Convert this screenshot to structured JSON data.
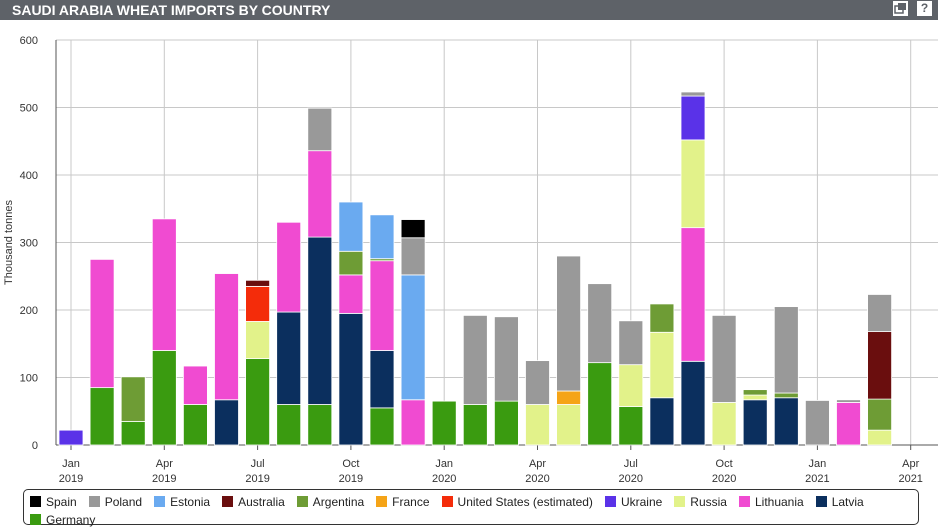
{
  "header": {
    "title": "SAUDI ARABIA WHEAT IMPORTS BY COUNTRY",
    "expand_icon": "window-restore-icon",
    "help_glyph": "?"
  },
  "chart_data": {
    "type": "bar",
    "stacked": true,
    "title": "SAUDI ARABIA WHEAT IMPORTS BY COUNTRY",
    "ylabel": "Thousand tonnes",
    "xlabel": "",
    "ylim": [
      0,
      600
    ],
    "yticks": [
      0,
      100,
      200,
      300,
      400,
      500,
      600
    ],
    "xticks": [
      {
        "month": "Jan",
        "year": "2019",
        "index": 0
      },
      {
        "month": "Apr",
        "year": "2019",
        "index": 3
      },
      {
        "month": "Jul",
        "year": "2019",
        "index": 6
      },
      {
        "month": "Oct",
        "year": "2019",
        "index": 9
      },
      {
        "month": "Jan",
        "year": "2020",
        "index": 12
      },
      {
        "month": "Apr",
        "year": "2020",
        "index": 15
      },
      {
        "month": "Jul",
        "year": "2020",
        "index": 18
      },
      {
        "month": "Oct",
        "year": "2020",
        "index": 21
      },
      {
        "month": "Jan",
        "year": "2021",
        "index": 24
      },
      {
        "month": "Apr",
        "year": "2021",
        "index": 27
      }
    ],
    "categories": [
      "Jan 2019",
      "Feb 2019",
      "Mar 2019",
      "Apr 2019",
      "May 2019",
      "Jun 2019",
      "Jul 2019",
      "Aug 2019",
      "Sep 2019",
      "Oct 2019",
      "Nov 2019",
      "Dec 2019",
      "Jan 2020",
      "Feb 2020",
      "Mar 2020",
      "Apr 2020",
      "May 2020",
      "Jun 2020",
      "Jul 2020",
      "Aug 2020",
      "Sep 2020",
      "Oct 2020",
      "Nov 2020",
      "Dec 2020",
      "Jan 2021",
      "Feb 2021",
      "Mar 2021"
    ],
    "grid": true,
    "legend_position": "bottom",
    "series": [
      {
        "name": "Germany",
        "color": "#3a9b10",
        "values": [
          0,
          85,
          35,
          140,
          60,
          0,
          128,
          60,
          60,
          0,
          55,
          0,
          65,
          60,
          65,
          0,
          0,
          122,
          57,
          0,
          0,
          0,
          0,
          0,
          0,
          0,
          0
        ]
      },
      {
        "name": "Latvia",
        "color": "#0b2f5e",
        "values": [
          0,
          0,
          0,
          0,
          0,
          67,
          0,
          137,
          248,
          195,
          85,
          0,
          0,
          0,
          0,
          0,
          0,
          0,
          0,
          70,
          124,
          0,
          67,
          70,
          0,
          0,
          0
        ]
      },
      {
        "name": "Lithuania",
        "color": "#f04bd1",
        "values": [
          0,
          190,
          0,
          195,
          57,
          187,
          0,
          133,
          128,
          57,
          133,
          67,
          0,
          0,
          0,
          0,
          0,
          0,
          0,
          0,
          198,
          0,
          0,
          0,
          0,
          63,
          0
        ]
      },
      {
        "name": "Russia",
        "color": "#e2f28a",
        "values": [
          0,
          0,
          0,
          0,
          0,
          0,
          55,
          0,
          0,
          0,
          0,
          0,
          0,
          0,
          0,
          60,
          60,
          0,
          62,
          97,
          130,
          63,
          7,
          0,
          0,
          0,
          22
        ]
      },
      {
        "name": "Ukraine",
        "color": "#5a32e8",
        "values": [
          22,
          0,
          0,
          0,
          0,
          0,
          0,
          0,
          0,
          0,
          0,
          0,
          0,
          0,
          0,
          0,
          0,
          0,
          0,
          0,
          65,
          0,
          0,
          0,
          0,
          0,
          0
        ]
      },
      {
        "name": "United States (estimated)",
        "color": "#f42c0a",
        "values": [
          0,
          0,
          0,
          0,
          0,
          0,
          52,
          0,
          0,
          0,
          0,
          0,
          0,
          0,
          0,
          0,
          0,
          0,
          0,
          0,
          0,
          0,
          0,
          0,
          0,
          0,
          0
        ]
      },
      {
        "name": "France",
        "color": "#f5a417",
        "values": [
          0,
          0,
          0,
          0,
          0,
          0,
          0,
          0,
          0,
          0,
          0,
          0,
          0,
          0,
          0,
          0,
          20,
          0,
          0,
          0,
          0,
          0,
          0,
          0,
          0,
          0,
          0
        ]
      },
      {
        "name": "Argentina",
        "color": "#6e9c35",
        "values": [
          0,
          0,
          66,
          0,
          0,
          0,
          0,
          0,
          0,
          35,
          3,
          0,
          0,
          0,
          0,
          0,
          0,
          0,
          0,
          42,
          0,
          0,
          8,
          7,
          0,
          0,
          46
        ]
      },
      {
        "name": "Australia",
        "color": "#6a0e0e",
        "values": [
          0,
          0,
          0,
          0,
          0,
          0,
          9,
          0,
          0,
          0,
          0,
          0,
          0,
          0,
          0,
          0,
          0,
          0,
          0,
          0,
          0,
          0,
          0,
          0,
          0,
          0,
          100
        ]
      },
      {
        "name": "Estonia",
        "color": "#6aaaf0",
        "values": [
          0,
          0,
          0,
          0,
          0,
          0,
          0,
          0,
          0,
          73,
          65,
          185,
          0,
          0,
          0,
          0,
          0,
          0,
          0,
          0,
          0,
          0,
          0,
          0,
          0,
          0,
          0
        ]
      },
      {
        "name": "Poland",
        "color": "#999999",
        "values": [
          0,
          0,
          0,
          0,
          0,
          0,
          0,
          0,
          63,
          0,
          0,
          55,
          0,
          132,
          125,
          65,
          200,
          117,
          65,
          0,
          6,
          129,
          0,
          128,
          66,
          4,
          55
        ]
      },
      {
        "name": "Spain",
        "color": "#000000",
        "values": [
          0,
          0,
          0,
          0,
          0,
          0,
          0,
          0,
          0,
          0,
          0,
          27,
          0,
          0,
          0,
          0,
          0,
          0,
          0,
          0,
          0,
          0,
          0,
          0,
          0,
          0,
          0
        ]
      }
    ],
    "legend": [
      {
        "name": "Spain",
        "color": "#000000"
      },
      {
        "name": "Poland",
        "color": "#999999"
      },
      {
        "name": "Estonia",
        "color": "#6aaaf0"
      },
      {
        "name": "Australia",
        "color": "#6a0e0e"
      },
      {
        "name": "Argentina",
        "color": "#6e9c35"
      },
      {
        "name": "France",
        "color": "#f5a417"
      },
      {
        "name": "United States (estimated)",
        "color": "#f42c0a"
      },
      {
        "name": "Ukraine",
        "color": "#5a32e8"
      },
      {
        "name": "Russia",
        "color": "#e2f28a"
      },
      {
        "name": "Lithuania",
        "color": "#f04bd1"
      },
      {
        "name": "Latvia",
        "color": "#0b2f5e"
      },
      {
        "name": "Germany",
        "color": "#3a9b10"
      }
    ]
  }
}
